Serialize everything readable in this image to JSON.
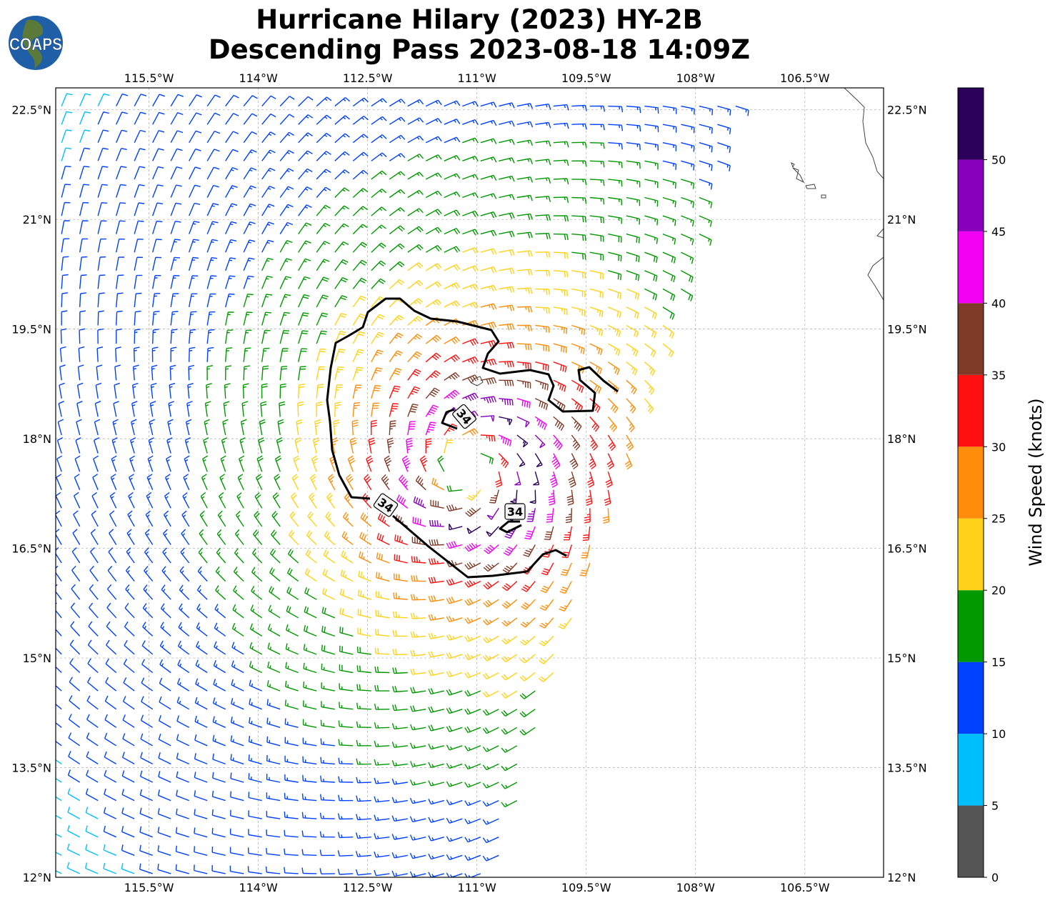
{
  "title": {
    "line1": "Hurricane Hilary (2023) HY-2B",
    "line2": "Descending Pass 2023-08-18 14:09Z"
  },
  "logo": {
    "text": "COAPS"
  },
  "chart_data": {
    "type": "wind-barb-map",
    "lon_ticks": [
      "115.5°W",
      "114°W",
      "112.5°W",
      "111°W",
      "109.5°W",
      "108°W",
      "106.5°W"
    ],
    "lon_tick_values": [
      -115.5,
      -114,
      -112.5,
      -111,
      -109.5,
      -108,
      -106.5
    ],
    "lat_ticks": [
      "22.5°N",
      "21°N",
      "19.5°N",
      "18°N",
      "16.5°N",
      "15°N",
      "13.5°N",
      "12°N"
    ],
    "lat_tick_values": [
      22.5,
      21,
      19.5,
      18,
      16.5,
      15,
      13.5,
      12
    ],
    "lon_range": [
      -116.78,
      -105.42
    ],
    "lat_range": [
      12.0,
      22.8
    ],
    "grid": true,
    "storm_center": {
      "lon": -111.13,
      "lat": 17.6
    },
    "max_wind_knots": 52,
    "radius_max_wind_deg": 0.8,
    "contour_label": "34",
    "contour_value_knots": 34,
    "colorbar": {
      "label": "Wind Speed (knots)",
      "ticks": [
        "0",
        "5",
        "10",
        "15",
        "20",
        "25",
        "30",
        "35",
        "40",
        "45",
        "50"
      ],
      "bounds": [
        0,
        5,
        10,
        15,
        20,
        25,
        30,
        35,
        40,
        45,
        50,
        55
      ],
      "colors": [
        "#555555",
        "#00bfff",
        "#0040ff",
        "#009900",
        "#ffd21a",
        "#ff8c0a",
        "#ff1010",
        "#7f3b27",
        "#f200f2",
        "#8800bb",
        "#2a005a"
      ]
    }
  }
}
